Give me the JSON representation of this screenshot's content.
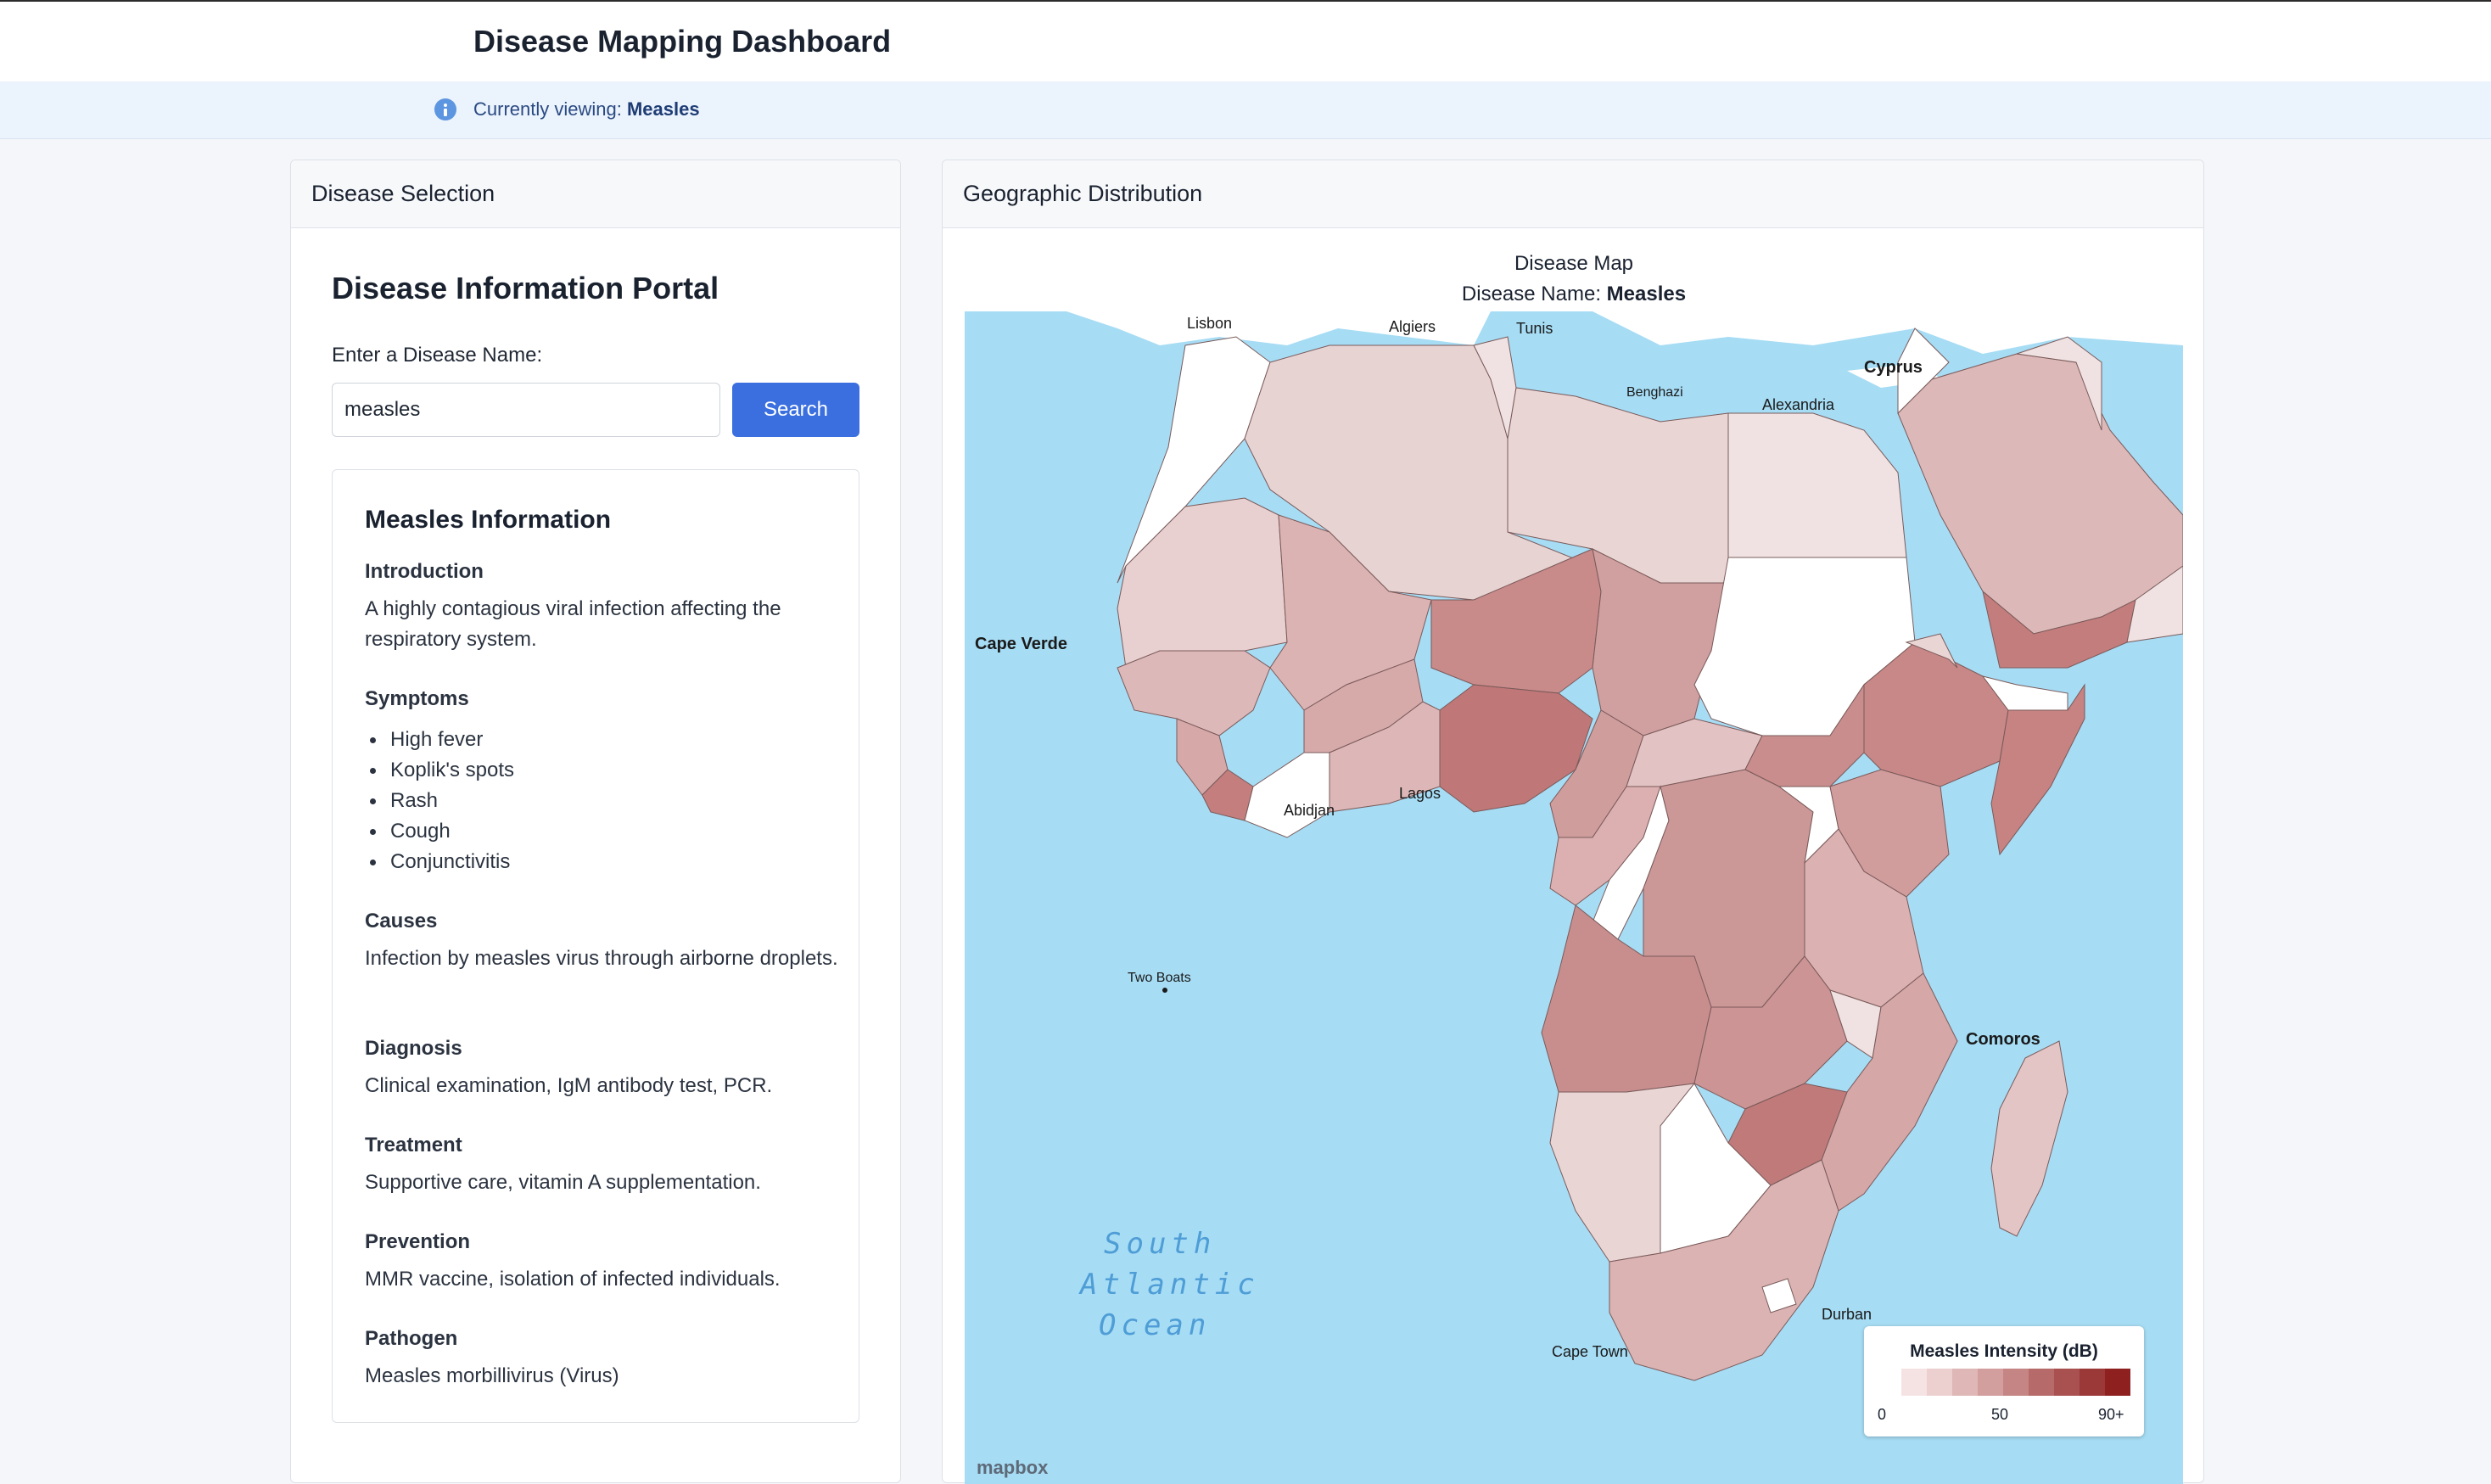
{
  "header": {
    "title": "Disease Mapping Dashboard"
  },
  "infobar": {
    "prefix": "Currently viewing:",
    "disease": "Measles"
  },
  "left_panel": {
    "header": "Disease Selection",
    "portal_title": "Disease Information Portal",
    "search_label": "Enter a Disease Name:",
    "search_value": "measles",
    "search_button": "Search",
    "info": {
      "title": "Measles Information",
      "introduction_h": "Introduction",
      "introduction": "A highly contagious viral infection affecting the respiratory system.",
      "symptoms_h": "Symptoms",
      "symptoms": [
        "High fever",
        "Koplik's spots",
        "Rash",
        "Cough",
        "Conjunctivitis"
      ],
      "causes_h": "Causes",
      "causes": "Infection by measles virus through airborne droplets.",
      "diagnosis_h": "Diagnosis",
      "diagnosis": "Clinical examination, IgM antibody test, PCR.",
      "treatment_h": "Treatment",
      "treatment": "Supportive care, vitamin A supplementation.",
      "prevention_h": "Prevention",
      "prevention": "MMR vaccine, isolation of infected individuals.",
      "pathogen_h": "Pathogen",
      "pathogen": "Measles morbillivirus (Virus)"
    }
  },
  "right_panel": {
    "header": "Geographic Distribution",
    "map_title": "Disease Map",
    "map_subtitle_prefix": "Disease Name:",
    "map_subtitle_value": "Measles",
    "legend": {
      "title": "Measles Intensity (dB)",
      "scale_min": "0",
      "scale_mid": "50",
      "scale_max": "90+",
      "colors": [
        "#f5e3e3",
        "#ecd0d0",
        "#e0b7b7",
        "#d39e9e",
        "#c58585",
        "#b76a6a",
        "#a95151",
        "#9b3838",
        "#8e2020"
      ]
    },
    "place_labels": [
      "Lisbon",
      "Algiers",
      "Tunis",
      "Benghazi",
      "Alexandria",
      "Cyprus",
      "Cape Verde",
      "Abidjan",
      "Lagos",
      "Two Boats",
      "Comoros",
      "Durban",
      "Cape Town",
      "South",
      "Atlantic",
      "Ocean",
      "mapbox"
    ],
    "colors": {
      "ocean": "#a6dcf4",
      "land_blank": "#ffffff",
      "border": "#7a5a5a"
    }
  }
}
